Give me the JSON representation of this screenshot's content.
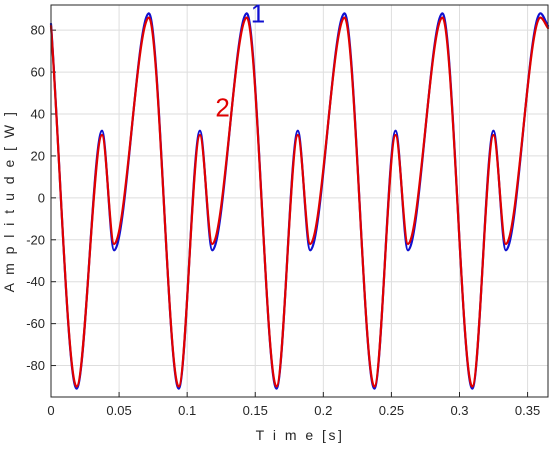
{
  "chart_data": {
    "type": "line",
    "title": "",
    "xlabel": "T i m e [s]",
    "ylabel": "A m p l i t u d e [ W ]",
    "xlim": [
      0,
      0.365
    ],
    "ylim": [
      -95,
      92
    ],
    "grid": true,
    "x_ticks": [
      "0",
      "0.05",
      "0.1",
      "0.15",
      "0.2",
      "0.25",
      "0.3",
      "0.35"
    ],
    "y_ticks": [
      "80",
      "60",
      "40",
      "20",
      "0",
      "-20",
      "-40",
      "-60",
      "-80"
    ],
    "x_tick_values": [
      0,
      0.05,
      0.1,
      0.15,
      0.2,
      0.25,
      0.3,
      0.35
    ],
    "y_tick_values": [
      80,
      60,
      40,
      20,
      0,
      -20,
      -40,
      -60,
      -80
    ],
    "series": [
      {
        "name": "1",
        "color": "#1010d0",
        "x": [
          0,
          0.0188,
          0.0375,
          0.0463,
          0.0719,
          0.0938,
          0.1094,
          0.1184,
          0.1438,
          0.1656,
          0.1813,
          0.1903,
          0.2156,
          0.2375,
          0.2531,
          0.2621,
          0.2875,
          0.3094,
          0.325,
          0.334,
          0.3594,
          0.365
        ],
        "values": [
          83,
          -91,
          32,
          -25,
          88,
          -91,
          32,
          -25,
          88,
          -91,
          32,
          -25,
          88,
          -91,
          32,
          -25,
          88,
          -91,
          32,
          -25,
          88,
          82
        ]
      },
      {
        "name": "2",
        "color": "#e00000",
        "x": [
          0,
          0.0188,
          0.0375,
          0.0463,
          0.0719,
          0.0938,
          0.1094,
          0.1184,
          0.1438,
          0.1656,
          0.1813,
          0.1903,
          0.2156,
          0.2375,
          0.2531,
          0.2621,
          0.2875,
          0.3094,
          0.325,
          0.334,
          0.3594,
          0.365
        ],
        "values": [
          82,
          -90,
          30,
          -22,
          86,
          -90,
          30,
          -22,
          86,
          -90,
          30,
          -22,
          86,
          -90,
          30,
          -22,
          86,
          -90,
          30,
          -22,
          86,
          81
        ]
      }
    ],
    "annotations": [
      {
        "text": "1",
        "color": "#1010d0",
        "x": 0.152,
        "y": 88
      },
      {
        "text": "2",
        "color": "#e00000",
        "x": 0.126,
        "y": 43
      }
    ]
  }
}
